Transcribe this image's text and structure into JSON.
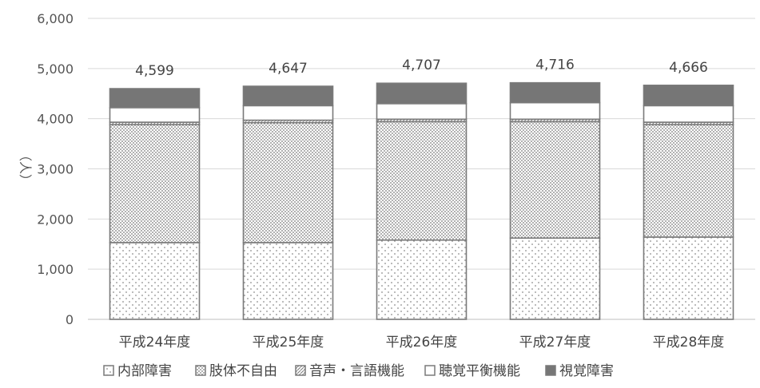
{
  "chart_data": {
    "type": "bar",
    "stacked": true,
    "title": "",
    "xlabel": "",
    "ylabel": "（人）",
    "ylim": [
      0,
      6000
    ],
    "yticks": [
      "0",
      "1,000",
      "2,000",
      "3,000",
      "4,000",
      "5,000",
      "6,000"
    ],
    "grid": true,
    "legend_position": "bottom",
    "categories": [
      "平成24年度",
      "平成25年度",
      "平成26年度",
      "平成27年度",
      "平成28年度"
    ],
    "series": [
      {
        "name": "内部障害",
        "values": [
          1530,
          1530,
          1580,
          1620,
          1640
        ],
        "pattern": "sparse-dots"
      },
      {
        "name": "肢体不自由",
        "values": [
          2350,
          2390,
          2360,
          2320,
          2240
        ],
        "pattern": "dense-dots"
      },
      {
        "name": "音声・言語機能",
        "values": [
          50,
          50,
          50,
          50,
          50
        ],
        "pattern": "hatch"
      },
      {
        "name": "聴覚平衡機能",
        "values": [
          290,
          290,
          310,
          330,
          330
        ],
        "pattern": "white"
      },
      {
        "name": "視覚障害",
        "values": [
          379,
          387,
          407,
          396,
          406
        ],
        "pattern": "solid-dark"
      }
    ],
    "totals": [
      4599,
      4647,
      4707,
      4716,
      4666
    ],
    "total_labels": [
      "4,599",
      "4,647",
      "4,707",
      "4,716",
      "4,666"
    ],
    "colors": {
      "outline": "#7a7a7a",
      "dark": "#767676",
      "grid": "#d9d9d9",
      "dots": "#8c8c8c"
    }
  }
}
